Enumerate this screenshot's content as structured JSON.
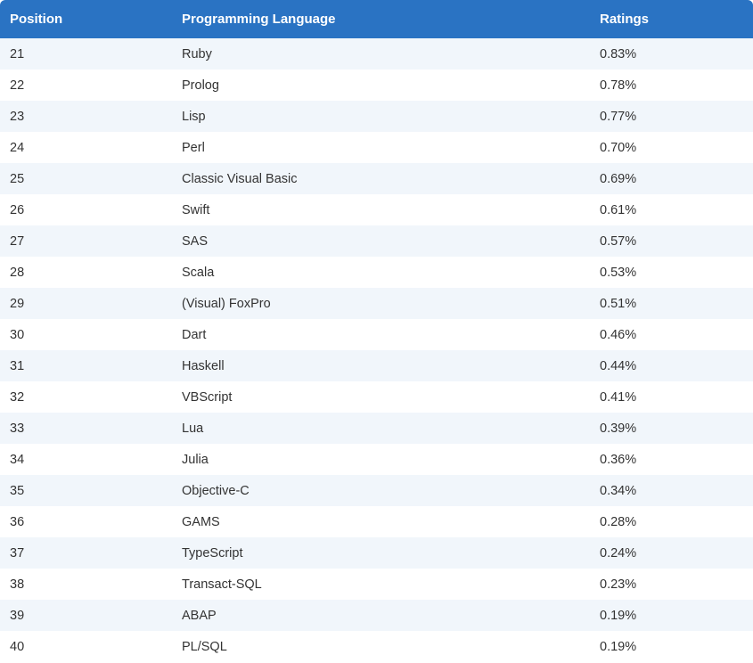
{
  "table": {
    "headers": [
      "Position",
      "Programming Language",
      "Ratings"
    ],
    "rows": [
      [
        "21",
        "Ruby",
        "0.83%"
      ],
      [
        "22",
        "Prolog",
        "0.78%"
      ],
      [
        "23",
        "Lisp",
        "0.77%"
      ],
      [
        "24",
        "Perl",
        "0.70%"
      ],
      [
        "25",
        "Classic Visual Basic",
        "0.69%"
      ],
      [
        "26",
        "Swift",
        "0.61%"
      ],
      [
        "27",
        "SAS",
        "0.57%"
      ],
      [
        "28",
        "Scala",
        "0.53%"
      ],
      [
        "29",
        "(Visual) FoxPro",
        "0.51%"
      ],
      [
        "30",
        "Dart",
        "0.46%"
      ],
      [
        "31",
        "Haskell",
        "0.44%"
      ],
      [
        "32",
        "VBScript",
        "0.41%"
      ],
      [
        "33",
        "Lua",
        "0.39%"
      ],
      [
        "34",
        "Julia",
        "0.36%"
      ],
      [
        "35",
        "Objective-C",
        "0.34%"
      ],
      [
        "36",
        "GAMS",
        "0.28%"
      ],
      [
        "37",
        "TypeScript",
        "0.24%"
      ],
      [
        "38",
        "Transact-SQL",
        "0.23%"
      ],
      [
        "39",
        "ABAP",
        "0.19%"
      ],
      [
        "40",
        "PL/SQL",
        "0.19%"
      ]
    ]
  },
  "colors": {
    "header_background": "#2a73c3",
    "stripe_background": "#f1f6fb"
  }
}
